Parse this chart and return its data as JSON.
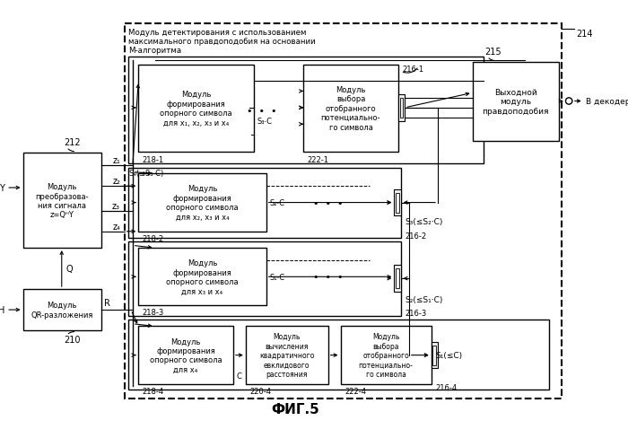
{
  "title": "ФИГ.5",
  "bg_color": "#ffffff",
  "main_label": "Модуль детектирования с использованием\nмаксимального правдоподобия на основании\nМ-алгоритма",
  "block1_label": "Модуль\nформирования\nопорного символа\nдля x₁, x₂, x₃ и x₄",
  "block2_label": "Модуль\nформирования\nопорного символа\nдля x₂, x₃ и x₄",
  "block3_label": "Модуль\nформирования\nопорного символа\nдля x₃ и x₄",
  "block4_label": "Модуль\nформирования\nопорного символа\nдля x₄",
  "sel1_label": "Модуль\nвыбора\nотобранного\nпотенциально-\nго символа",
  "sel4_label": "Модуль\nвыбора\nотобранного\nпотенциально-\nго символа",
  "calc_label": "Модуль\nвычисления\nквадратичного\nевклидового\nрасстояния",
  "output_label": "Выходной\nмодуль\nправдоподобия",
  "left_box1_label": "Модуль\nпреобразова-\nния сигнала\nz=QᴴY",
  "left_box2_label": "Модуль\nQR-разложения"
}
